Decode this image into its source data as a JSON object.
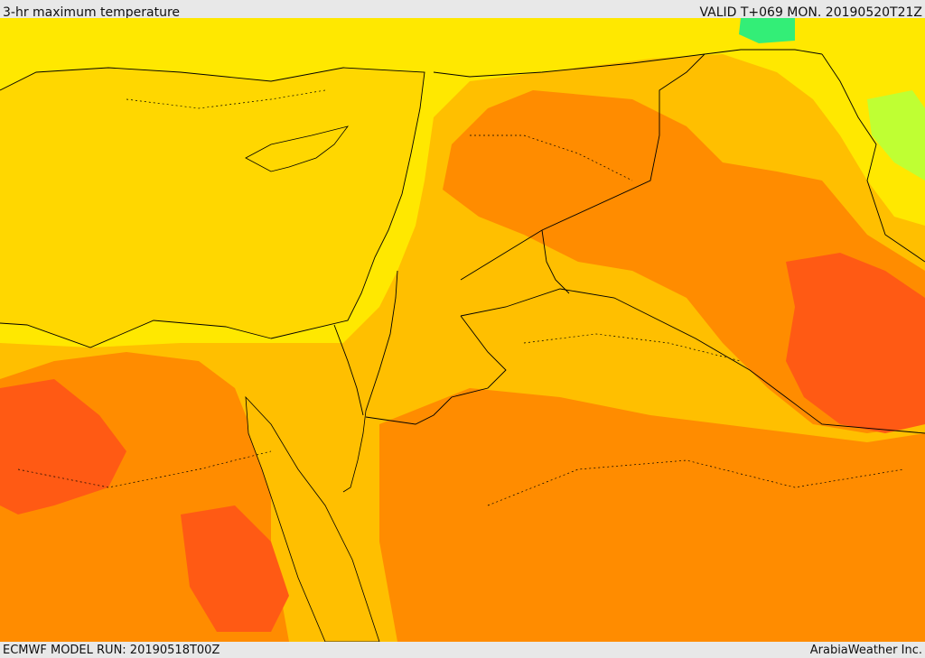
{
  "header": {
    "title": "3-hr maximum temperature",
    "valid": "VALID T+069 MON. 20190520T21Z"
  },
  "footer": {
    "model_run": "ECMWF MODEL RUN: 20190518T00Z",
    "credit": "ArabiaWeather Inc."
  },
  "map": {
    "field": "3-hr maximum temperature",
    "colors": {
      "sea": "#ffd700",
      "yellow": "#ffe800",
      "light_orange": "#ffbf00",
      "orange": "#ff8c00",
      "deep_orange": "#ff5a14",
      "light_green": "#bfff33",
      "green": "#33ee77",
      "border": "#000000"
    }
  }
}
